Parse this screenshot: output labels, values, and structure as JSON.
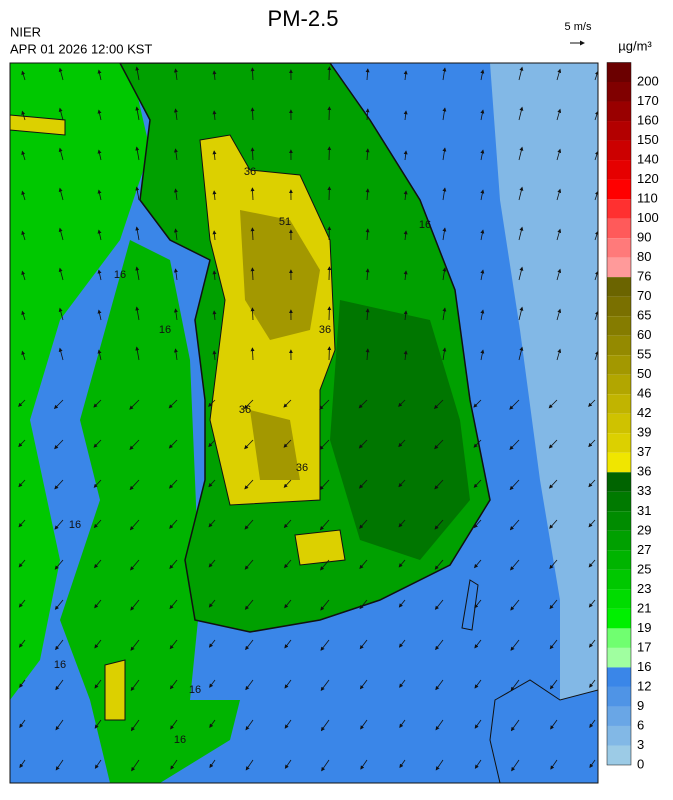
{
  "header": {
    "title": "PM-2.5",
    "agency": "NIER",
    "datetime": "APR 01 2026 12:00 KST",
    "wind_scale": "5 m/s"
  },
  "colorbar": {
    "unit": "µg/m³",
    "levels": [
      200,
      170,
      160,
      150,
      140,
      120,
      110,
      100,
      90,
      80,
      76,
      70,
      65,
      60,
      55,
      50,
      46,
      42,
      39,
      37,
      36,
      33,
      31,
      29,
      27,
      25,
      23,
      21,
      19,
      17,
      16,
      12,
      9,
      6,
      3,
      0
    ],
    "colors": [
      "#6b0000",
      "#800000",
      "#990000",
      "#b30000",
      "#cc0000",
      "#e60000",
      "#ff0000",
      "#ff3030",
      "#ff5a5a",
      "#ff7a7a",
      "#ff9a9a",
      "#6b6400",
      "#7a7000",
      "#857c00",
      "#948a00",
      "#a39800",
      "#b2a600",
      "#c1b400",
      "#cfc200",
      "#dcd000",
      "#f0e600",
      "#006400",
      "#007a00",
      "#008c00",
      "#00a000",
      "#00b400",
      "#00c800",
      "#00dc00",
      "#00f000",
      "#70ff70",
      "#a0ffa0",
      "#3a86e8",
      "#4f94e6",
      "#69a6e6",
      "#82b8e6",
      "#9ccbe6"
    ]
  },
  "contour_labels": [
    "16",
    "16",
    "16",
    "16",
    "16",
    "16",
    "16",
    "36",
    "36",
    "36",
    "36",
    "51"
  ]
}
